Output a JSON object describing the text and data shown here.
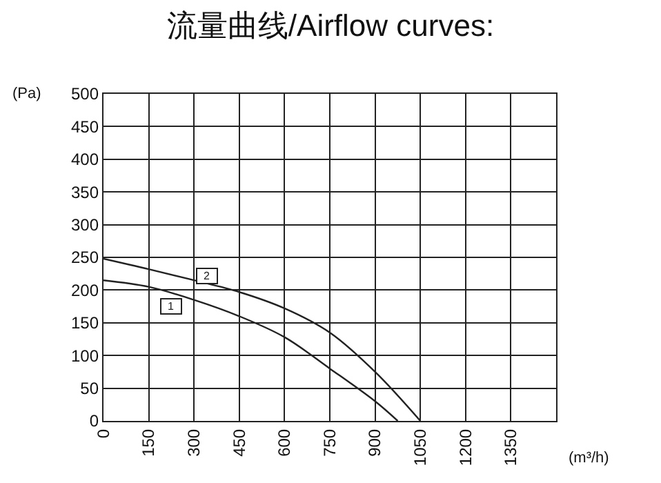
{
  "chart_data": {
    "type": "line",
    "title": "流量曲线/Airflow curves:",
    "xlabel": "(m³/h)",
    "ylabel": "(Pa)",
    "x": [
      0,
      150,
      300,
      450,
      600,
      750,
      900,
      975
    ],
    "series": [
      {
        "color": "#222222",
        "values": [
          215,
          205,
          185,
          160,
          128,
          80,
          30,
          0
        ]
      },
      {
        "color": "#222222",
        "x": [
          0,
          150,
          300,
          450,
          600,
          750,
          900,
          1050
        ],
        "values": [
          248,
          232,
          215,
          197,
          172,
          135,
          75,
          0
        ]
      }
    ],
    "annotations": [
      {
        "text": "1",
        "x": 225,
        "y": 175
      },
      {
        "text": "2",
        "x": 345,
        "y": 222
      }
    ],
    "xlim": [
      0,
      1500
    ],
    "xticks": [
      0,
      150,
      300,
      450,
      600,
      750,
      900,
      1050,
      1200,
      1350
    ],
    "ylim": [
      0,
      500
    ],
    "yticks": [
      0,
      50,
      100,
      150,
      200,
      250,
      300,
      350,
      400,
      450,
      500
    ],
    "grid": true,
    "legend": false,
    "marker": "none",
    "line_style": "solid"
  }
}
